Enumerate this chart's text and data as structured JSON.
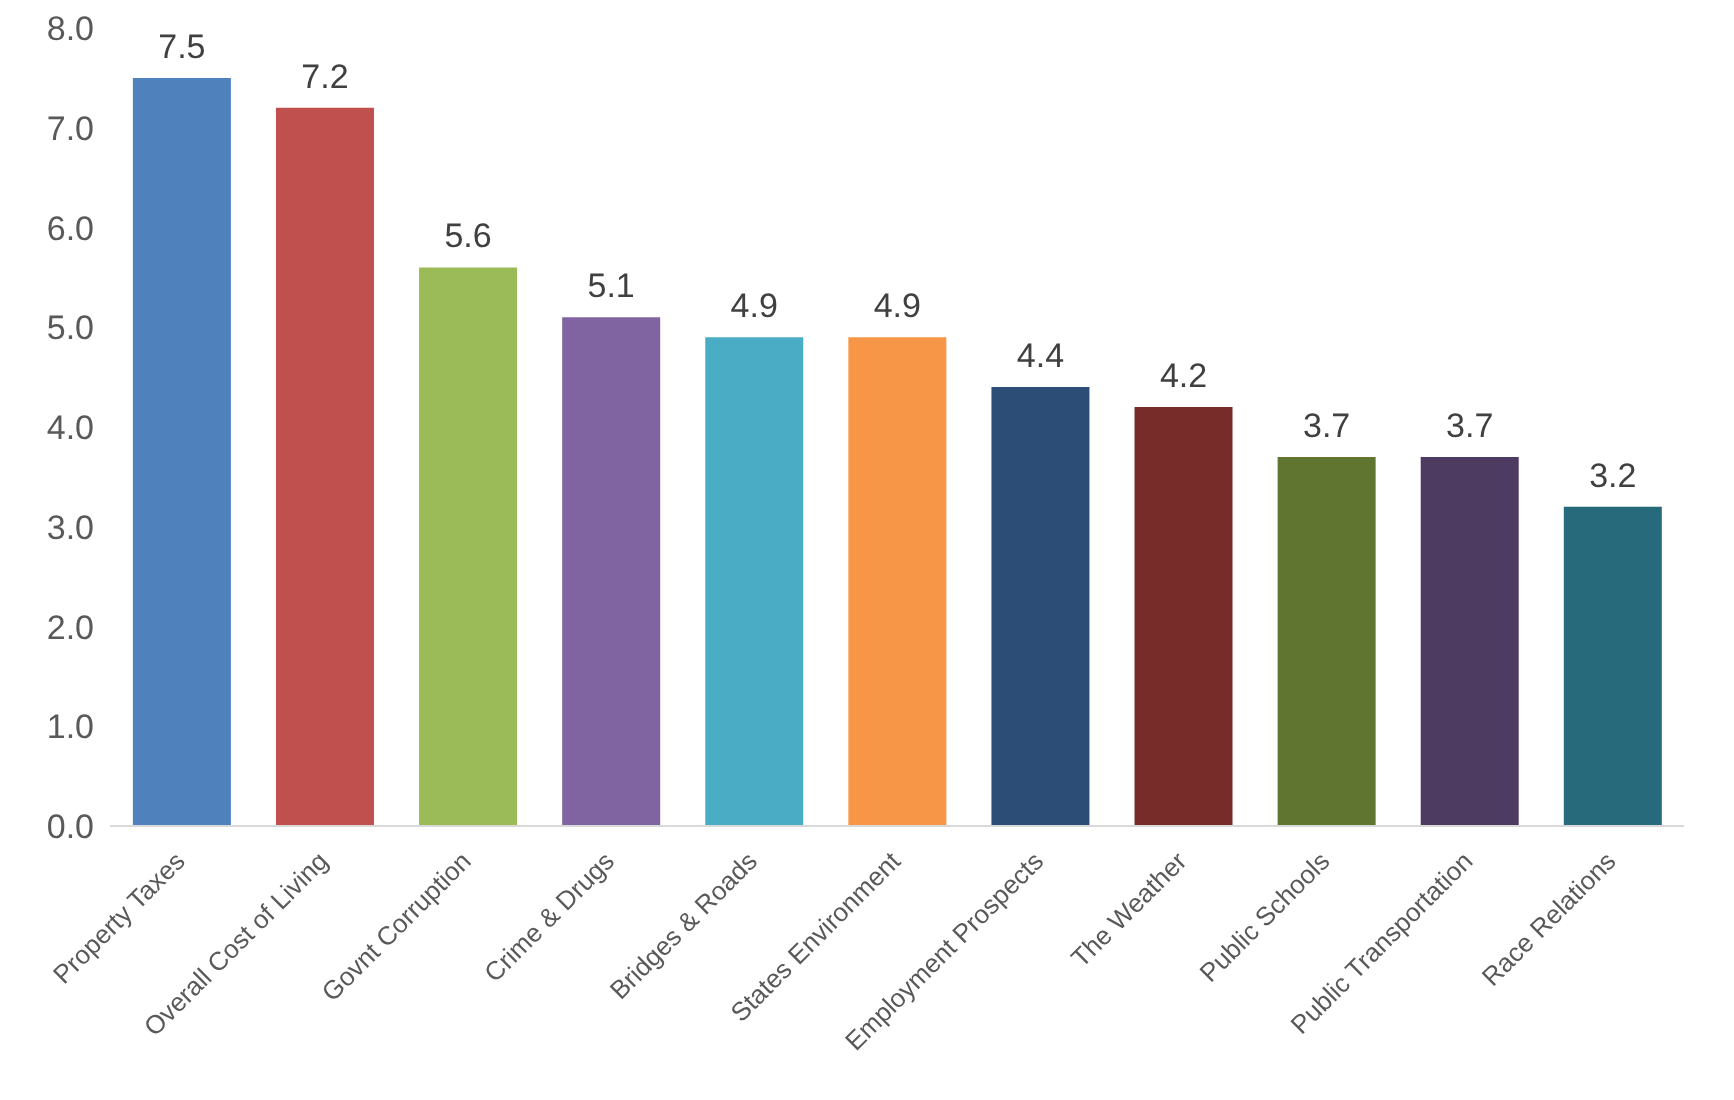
{
  "chart_data": {
    "type": "bar",
    "categories": [
      "Property Taxes",
      "Overall Cost of Living",
      "Govnt Corruption",
      "Crime & Drugs",
      "Bridges & Roads",
      "States Environment",
      "Employment Prospects",
      "The Weather",
      "Public Schools",
      "Public Transportation",
      "Race Relations"
    ],
    "values": [
      7.5,
      7.2,
      5.6,
      5.1,
      4.9,
      4.9,
      4.4,
      4.2,
      3.7,
      3.7,
      3.2
    ],
    "colors": [
      "#4f81bd",
      "#c0504d",
      "#9bbb59",
      "#8064a2",
      "#4bacc6",
      "#f79646",
      "#2c4d75",
      "#772c2a",
      "#5f7530",
      "#4d3b62",
      "#276a7c"
    ],
    "ylim": [
      0,
      8
    ],
    "yticks": [
      {
        "value": 0,
        "label": "0.0"
      },
      {
        "value": 1,
        "label": "1.0"
      },
      {
        "value": 2,
        "label": "2.0"
      },
      {
        "value": 3,
        "label": "3.0"
      },
      {
        "value": 4,
        "label": "4.0"
      },
      {
        "value": 5,
        "label": "5.0"
      },
      {
        "value": 6,
        "label": "6.0"
      },
      {
        "value": 7,
        "label": "7.0"
      },
      {
        "value": 8,
        "label": "8.0"
      }
    ],
    "grid": false,
    "data_labels": true,
    "legend": false
  }
}
